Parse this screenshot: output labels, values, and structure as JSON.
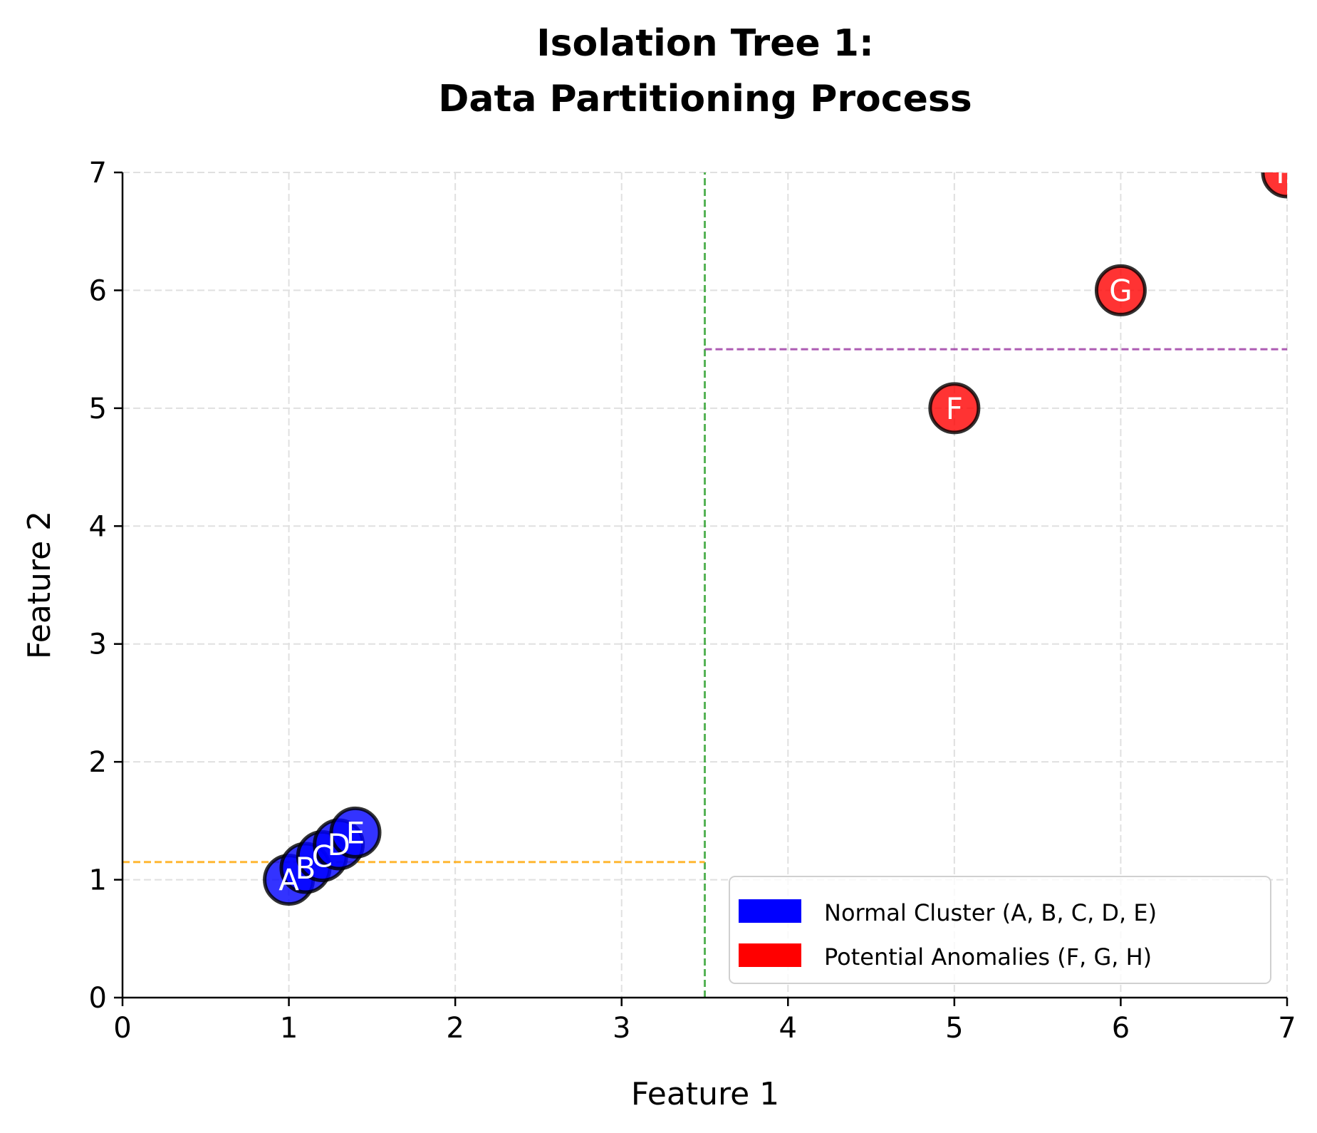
{
  "chart_data": {
    "type": "scatter",
    "title_lines": [
      "Isolation Tree 1:",
      "Data Partitioning Process"
    ],
    "xlabel": "Feature 1",
    "ylabel": "Feature 2",
    "xlim": [
      0,
      7
    ],
    "ylim": [
      0,
      7
    ],
    "xticks": [
      "0",
      "1",
      "2",
      "3",
      "4",
      "5",
      "6",
      "7"
    ],
    "yticks": [
      "0",
      "1",
      "2",
      "3",
      "4",
      "5",
      "6",
      "7"
    ],
    "grid": true,
    "points": [
      {
        "label": "A",
        "x": 1.0,
        "y": 1.0,
        "group": "normal"
      },
      {
        "label": "B",
        "x": 1.1,
        "y": 1.1,
        "group": "normal"
      },
      {
        "label": "C",
        "x": 1.2,
        "y": 1.2,
        "group": "normal"
      },
      {
        "label": "D",
        "x": 1.3,
        "y": 1.3,
        "group": "normal"
      },
      {
        "label": "E",
        "x": 1.4,
        "y": 1.4,
        "group": "normal"
      },
      {
        "label": "F",
        "x": 5,
        "y": 5,
        "group": "anomaly"
      },
      {
        "label": "G",
        "x": 6,
        "y": 6,
        "group": "anomaly"
      },
      {
        "label": "H",
        "x": 7,
        "y": 7,
        "group": "anomaly"
      }
    ],
    "splits": [
      {
        "orientation": "vertical",
        "value": 3.5,
        "from": 0,
        "to": 7,
        "color": "#2ca02c"
      },
      {
        "orientation": "horizontal",
        "value": 1.15,
        "from": 0,
        "to": 3.5,
        "color": "#ffa500"
      },
      {
        "orientation": "horizontal",
        "value": 5.5,
        "from": 3.5,
        "to": 7,
        "color": "#9932a0"
      }
    ],
    "colors": {
      "normal": "#0000ff",
      "anomaly": "#ff0000"
    },
    "legend": {
      "placement": "lower-right",
      "entries": [
        {
          "label": "Normal Cluster (A, B, C, D, E)",
          "color": "#0000ff"
        },
        {
          "label": "Potential Anomalies (F, G, H)",
          "color": "#ff0000"
        }
      ]
    }
  }
}
